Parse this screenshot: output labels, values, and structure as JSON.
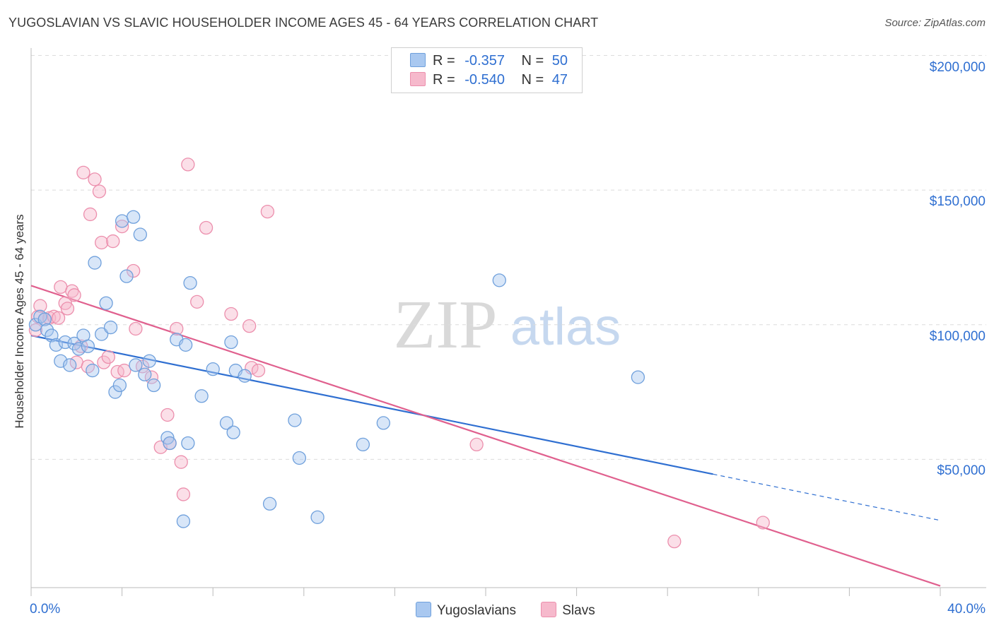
{
  "title": "YUGOSLAVIAN VS SLAVIC HOUSEHOLDER INCOME AGES 45 - 64 YEARS CORRELATION CHART",
  "source": "Source: ZipAtlas.com",
  "watermark": {
    "zip": "ZIP",
    "atlas": "atlas"
  },
  "legend": {
    "rows": [
      {
        "r_label": "R =",
        "r_value": "-0.357",
        "n_label": "N =",
        "n_value": "50"
      },
      {
        "r_label": "R =",
        "r_value": "-0.540",
        "n_label": "N =",
        "n_value": "47"
      }
    ]
  },
  "bottom_legend": {
    "items": [
      "Yugoslavians",
      "Slavs"
    ]
  },
  "chart_data": {
    "type": "scatter",
    "ylabel": "Householder Income Ages 45 - 64 years",
    "xlim": [
      0,
      40
    ],
    "ylim": [
      0,
      200000
    ],
    "x_ticks": [
      {
        "value": 0,
        "label": "0.0%"
      },
      {
        "value": 40,
        "label": "40.0%"
      }
    ],
    "y_ticks": [
      {
        "value": 50000,
        "label": "$50,000"
      },
      {
        "value": 100000,
        "label": "$100,000"
      },
      {
        "value": 150000,
        "label": "$150,000"
      },
      {
        "value": 200000,
        "label": "$200,000"
      }
    ],
    "colors": {
      "yugoslavians_fill": "#a9c8f0",
      "yugoslavians_stroke": "#6fa0dc",
      "yugoslavians_line": "#2f6fd1",
      "slavs_fill": "#f6b9cc",
      "slavs_stroke": "#ec8fad",
      "slavs_line": "#e0608e"
    },
    "series": [
      {
        "name": "Yugoslavians",
        "trend": {
          "x0": 0,
          "y0": 96000,
          "x1": 30,
          "y1": 44500,
          "dash_to": 40
        },
        "points": [
          [
            0.2,
            100000
          ],
          [
            0.4,
            103000
          ],
          [
            0.6,
            102000
          ],
          [
            0.7,
            98000
          ],
          [
            0.9,
            96000
          ],
          [
            1.1,
            92500
          ],
          [
            1.3,
            86500
          ],
          [
            1.5,
            93500
          ],
          [
            1.7,
            85000
          ],
          [
            1.9,
            93000
          ],
          [
            2.1,
            91000
          ],
          [
            2.3,
            96000
          ],
          [
            2.5,
            92000
          ],
          [
            2.7,
            83000
          ],
          [
            2.8,
            123000
          ],
          [
            3.1,
            96500
          ],
          [
            3.3,
            108000
          ],
          [
            3.5,
            99000
          ],
          [
            3.7,
            75000
          ],
          [
            3.9,
            77500
          ],
          [
            4.0,
            138500
          ],
          [
            4.2,
            118000
          ],
          [
            4.5,
            140000
          ],
          [
            4.6,
            85000
          ],
          [
            4.8,
            133500
          ],
          [
            5.0,
            81500
          ],
          [
            5.2,
            86500
          ],
          [
            5.4,
            77500
          ],
          [
            6.0,
            58000
          ],
          [
            6.1,
            56000
          ],
          [
            6.7,
            27000
          ],
          [
            6.9,
            56000
          ],
          [
            7.0,
            115500
          ],
          [
            6.4,
            94500
          ],
          [
            6.8,
            92500
          ],
          [
            7.5,
            73500
          ],
          [
            8.0,
            83500
          ],
          [
            8.6,
            63500
          ],
          [
            8.8,
            93500
          ],
          [
            8.9,
            60000
          ],
          [
            9.0,
            83000
          ],
          [
            9.4,
            81000
          ],
          [
            10.5,
            33500
          ],
          [
            11.6,
            64500
          ],
          [
            11.8,
            50500
          ],
          [
            12.6,
            28500
          ],
          [
            14.6,
            55500
          ],
          [
            15.5,
            63500
          ],
          [
            20.6,
            116500
          ],
          [
            26.7,
            80500
          ]
        ]
      },
      {
        "name": "Slavs",
        "trend": {
          "x0": 0,
          "y0": 114500,
          "x1": 40,
          "y1": 3000
        },
        "points": [
          [
            0.2,
            98000
          ],
          [
            0.3,
            103000
          ],
          [
            0.4,
            107000
          ],
          [
            0.6,
            102000
          ],
          [
            0.8,
            102500
          ],
          [
            1.0,
            103000
          ],
          [
            1.2,
            102500
          ],
          [
            1.3,
            114000
          ],
          [
            1.5,
            108000
          ],
          [
            1.6,
            106000
          ],
          [
            1.8,
            112500
          ],
          [
            1.9,
            111000
          ],
          [
            2.0,
            86000
          ],
          [
            2.2,
            92000
          ],
          [
            2.3,
            156500
          ],
          [
            2.5,
            84500
          ],
          [
            2.6,
            141000
          ],
          [
            2.8,
            154000
          ],
          [
            3.0,
            149500
          ],
          [
            3.1,
            130500
          ],
          [
            3.2,
            86000
          ],
          [
            3.4,
            88000
          ],
          [
            3.6,
            131000
          ],
          [
            3.8,
            82500
          ],
          [
            4.0,
            136500
          ],
          [
            4.1,
            83000
          ],
          [
            4.5,
            120000
          ],
          [
            4.6,
            98500
          ],
          [
            4.9,
            84500
          ],
          [
            5.3,
            80500
          ],
          [
            5.7,
            54500
          ],
          [
            6.0,
            66500
          ],
          [
            6.1,
            56000
          ],
          [
            6.4,
            98500
          ],
          [
            6.6,
            49000
          ],
          [
            6.7,
            37000
          ],
          [
            6.9,
            159500
          ],
          [
            7.3,
            108500
          ],
          [
            7.7,
            136000
          ],
          [
            8.8,
            104000
          ],
          [
            9.6,
            99500
          ],
          [
            9.7,
            84000
          ],
          [
            10.0,
            83000
          ],
          [
            10.4,
            142000
          ],
          [
            19.6,
            55500
          ],
          [
            28.3,
            19500
          ],
          [
            32.2,
            26500
          ]
        ]
      }
    ]
  }
}
